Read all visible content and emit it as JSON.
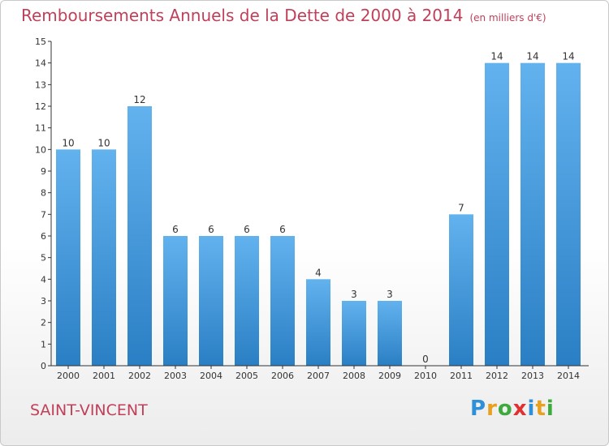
{
  "header": {
    "title": "Remboursements Annuels de la Dette de 2000 à 2014",
    "unit": "(en milliers d'€)"
  },
  "footer": {
    "city": "SAINT-VINCENT",
    "brand_letters": [
      "P",
      "r",
      "o",
      "x",
      "i",
      "t",
      "i"
    ],
    "brand_colors": [
      "#2f8fd8",
      "#e8a020",
      "#3daa3d",
      "#e03030",
      "#2f8fd8",
      "#e8a020",
      "#3daa3d"
    ]
  },
  "colors": {
    "title": "#c0405a",
    "bar": "#3b95d8",
    "bar_light": "#62b2ee",
    "axis": "#333333"
  },
  "chart_data": {
    "type": "bar",
    "title": "Remboursements Annuels de la Dette de 2000 à 2014",
    "categories": [
      "2000",
      "2001",
      "2002",
      "2003",
      "2004",
      "2005",
      "2006",
      "2007",
      "2008",
      "2009",
      "2010",
      "2011",
      "2012",
      "2013",
      "2014"
    ],
    "values": [
      10,
      10,
      12,
      6,
      6,
      6,
      6,
      4,
      3,
      3,
      0,
      7,
      14,
      14,
      14
    ],
    "data_labels": [
      "10",
      "10",
      "12",
      "6",
      "6",
      "6",
      "6",
      "4",
      "3",
      "3",
      "0",
      "7",
      "14",
      "14",
      "14"
    ],
    "yticks": [
      0,
      1,
      2,
      3,
      4,
      5,
      6,
      7,
      8,
      9,
      10,
      11,
      12,
      13,
      14,
      15
    ],
    "ylim": [
      0,
      15
    ],
    "grid": false,
    "legend": "none"
  }
}
